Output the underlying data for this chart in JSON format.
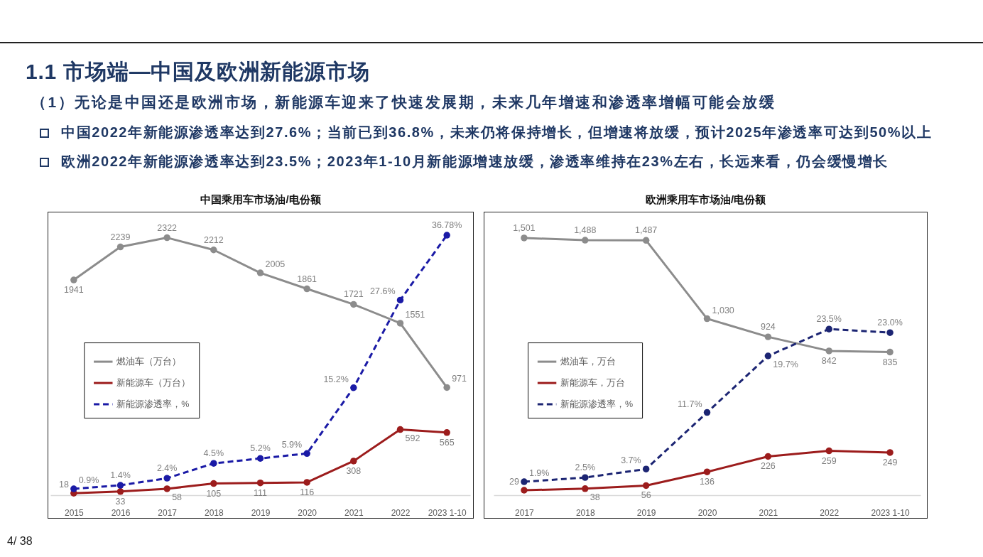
{
  "chart_data": [
    {
      "type": "other",
      "title": "1.1 市场端—中国及欧洲新能源市场",
      "subtitle": "（1）无论是中国还是欧洲市场，新能源车迎来了快速发展期，未来几年增速和渗透率增幅可能会放缓",
      "annotations": [
        "中国2022年新能源渗透率达到27.6%；当前已到36.8%，未来仍将保持增长，但增速将放缓，预计2025年渗透率可达到50%以上",
        "欧洲2022年新能源渗透率达到23.5%；2023年1-10月新能源增速放缓，渗透率维持在23%左右，长远来看，仍会缓慢增长",
        "4/ 38"
      ]
    },
    {
      "type": "line",
      "title": "中国乘用车市场油/电份额",
      "categories": [
        "2015",
        "2016",
        "2017",
        "2018",
        "2019",
        "2020",
        "2021",
        "2022",
        "2023 1-10"
      ],
      "series": [
        {
          "name": "燃油车（万台）",
          "color": "#8c8c8c",
          "values": [
            1941,
            2239,
            2322,
            2212,
            2005,
            1861,
            1721,
            1551,
            971
          ],
          "value_labels": [
            "1941",
            "2239",
            "2322",
            "2212",
            "2005",
            "1861",
            "1721",
            "1551",
            "971"
          ]
        },
        {
          "name": "新能源车（万台）",
          "color": "#9c1c1c",
          "values": [
            18,
            33,
            58,
            105,
            111,
            116,
            308,
            592,
            565
          ],
          "value_labels": [
            "18",
            "33",
            "58",
            "105",
            "111",
            "116",
            "308",
            "592",
            "565"
          ]
        },
        {
          "name": "新能源渗透率，%",
          "color": "#1a1aa6",
          "axis": "y2",
          "line_style": "dashed",
          "values": [
            0.9,
            1.4,
            2.4,
            4.5,
            5.2,
            5.9,
            15.2,
            27.6,
            36.78
          ],
          "value_labels": [
            "0.9%",
            "1.4%",
            "2.4%",
            "4.5%",
            "5.2%",
            "5.9%",
            "15.2%",
            "27.6%",
            "36.78%"
          ]
        }
      ],
      "ylim": [
        0,
        2550
      ],
      "y2lim": [
        0,
        40
      ],
      "tick_labels": "x",
      "legend": "left",
      "marker": "circle"
    },
    {
      "type": "line",
      "title": "欧洲乘用车市场油/电份额",
      "categories": [
        "2017",
        "2018",
        "2019",
        "2020",
        "2021",
        "2022",
        "2023 1-10"
      ],
      "series": [
        {
          "name": "燃油车，万台",
          "color": "#8c8c8c",
          "values": [
            1501,
            1488,
            1487,
            1030,
            924,
            842,
            835
          ],
          "value_labels": [
            "1,501",
            "1,488",
            "1,487",
            "1,030",
            "924",
            "842",
            "835"
          ]
        },
        {
          "name": "新能源车，万台",
          "color": "#9c1c1c",
          "values": [
            29,
            38,
            56,
            136,
            226,
            259,
            249
          ],
          "value_labels": [
            "29",
            "38",
            "56",
            "136",
            "226",
            "259",
            "249"
          ]
        },
        {
          "name": "新能源渗透率，%",
          "color": "#1c2573",
          "axis": "y2",
          "line_style": "dashed",
          "values": [
            1.9,
            2.5,
            3.7,
            11.7,
            19.7,
            23.5,
            23.0
          ],
          "value_labels": [
            "1.9%",
            "2.5%",
            "3.7%",
            "11.7%",
            "19.7%",
            "23.5%",
            "23.0%"
          ]
        }
      ],
      "ylim": [
        0,
        1650
      ],
      "y2lim": [
        0,
        40
      ],
      "tick_labels": "x",
      "legend": "left",
      "marker": "circle"
    }
  ]
}
